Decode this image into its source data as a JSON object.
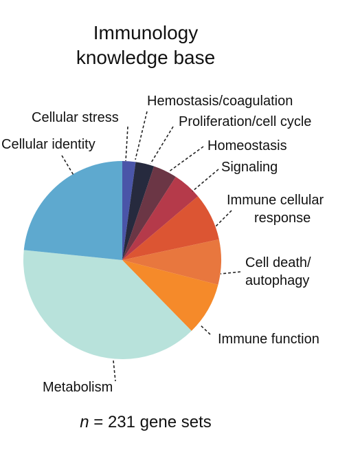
{
  "title": [
    "Immunology",
    "knowledge base"
  ],
  "footer": {
    "n": "n",
    "rest": " = 231 gene sets"
  },
  "chart_data": {
    "type": "pie",
    "total": 231,
    "start": "12 o'clock",
    "direction": "clockwise",
    "slices": [
      {
        "label": "Cellular stress",
        "value": 5,
        "color": "#4a55a8"
      },
      {
        "label": "Hemostasis/coagulation",
        "value": 7,
        "color": "#262a3e"
      },
      {
        "label": "Proliferation/cell cycle",
        "value": 9,
        "color": "#6b3645"
      },
      {
        "label": "Homeostasis",
        "value": 11,
        "color": "#b53a4a"
      },
      {
        "label": "Signaling",
        "value": 0,
        "color": "#c24a50"
      },
      {
        "label": "Immune cellular response",
        "value": 18,
        "color": "#dc5533"
      },
      {
        "label": "Cell death/ autophagy",
        "value": 17,
        "color": "#e8773e"
      },
      {
        "label": "Immune function",
        "value": 20,
        "color": "#f58a2a"
      },
      {
        "label": "Metabolism",
        "value": 90,
        "color": "#b8e2db"
      },
      {
        "label": "Cellular identity",
        "value": 54,
        "color": "#5ea9cf"
      }
    ]
  }
}
